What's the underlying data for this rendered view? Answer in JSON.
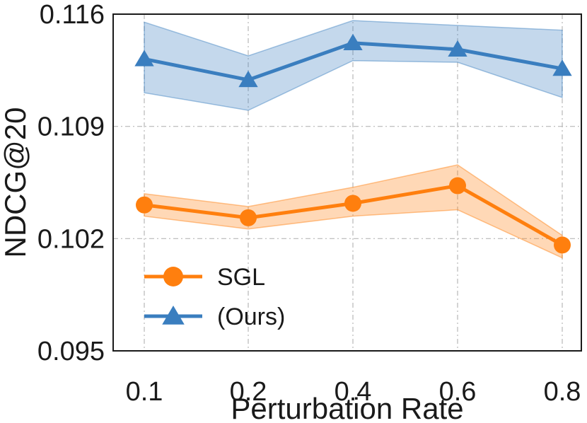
{
  "chart_data": {
    "type": "line",
    "title": "",
    "xlabel": "Perturbation Rate",
    "ylabel": "NDCG@20",
    "categories": [
      "0.1",
      "0.2",
      "0.4",
      "0.6",
      "0.8"
    ],
    "ylim": [
      0.095,
      0.116
    ],
    "yticks": [
      0.095,
      0.102,
      0.109,
      0.116
    ],
    "ytick_labels": [
      "0.095",
      "0.102",
      "0.109",
      "0.116"
    ],
    "grid": true,
    "legend_position": "lower-left",
    "series": [
      {
        "name": "SGL",
        "color": "#ff7f0e",
        "marker": "circle",
        "values": [
          0.1041,
          0.1033,
          0.1042,
          0.1053,
          0.1016
        ],
        "lower": [
          0.1034,
          0.1026,
          0.1034,
          0.1038,
          0.1008
        ],
        "upper": [
          0.1048,
          0.104,
          0.1052,
          0.1066,
          0.1022
        ]
      },
      {
        "name": "(Ours)",
        "color": "#3a7ebf",
        "marker": "triangle",
        "values": [
          0.1132,
          0.1119,
          0.1142,
          0.1138,
          0.1126
        ],
        "lower": [
          0.1111,
          0.11,
          0.1131,
          0.113,
          0.1108
        ],
        "upper": [
          0.1155,
          0.1134,
          0.1156,
          0.1153,
          0.115
        ]
      }
    ]
  }
}
